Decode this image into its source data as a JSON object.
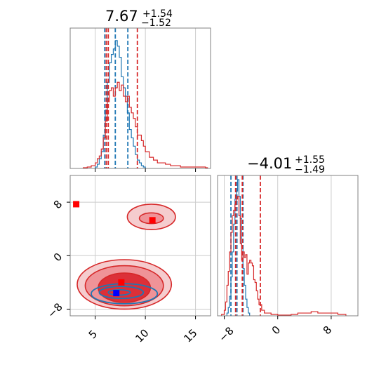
{
  "chart_data": [
    {
      "type": "histogram",
      "panel": "marginal-x",
      "title": {
        "value": "7.67",
        "upper": "+1.54",
        "lower": "−1.52"
      },
      "xlim": [
        2.5,
        16.5
      ],
      "grid": true,
      "colors": {
        "blue": "#1f77b4",
        "red": "#d62728"
      },
      "series": [
        {
          "color": "blue",
          "bins": [
            [
              5.0,
              0.01
            ],
            [
              5.2,
              0.03
            ],
            [
              5.4,
              0.07
            ],
            [
              5.6,
              0.12
            ],
            [
              5.8,
              0.24
            ],
            [
              6.0,
              0.42
            ],
            [
              6.2,
              0.62
            ],
            [
              6.4,
              0.76
            ],
            [
              6.6,
              0.82
            ],
            [
              6.8,
              0.86
            ],
            [
              7.0,
              0.92
            ],
            [
              7.2,
              0.88
            ],
            [
              7.4,
              0.8
            ],
            [
              7.6,
              0.66
            ],
            [
              7.8,
              0.58
            ],
            [
              8.0,
              0.52
            ],
            [
              8.2,
              0.4
            ],
            [
              8.4,
              0.28
            ],
            [
              8.6,
              0.22
            ],
            [
              8.8,
              0.16
            ],
            [
              9.0,
              0.1
            ],
            [
              9.2,
              0.06
            ],
            [
              9.4,
              0.04
            ],
            [
              9.6,
              0.02
            ],
            [
              9.8,
              0.01
            ]
          ],
          "quantiles": [
            5.95,
            7.0,
            8.25
          ]
        },
        {
          "color": "red",
          "bins": [
            [
              3.8,
              0.005
            ],
            [
              4.2,
              0.01
            ],
            [
              4.6,
              0.02
            ],
            [
              5.0,
              0.04
            ],
            [
              5.2,
              0.07
            ],
            [
              5.4,
              0.09
            ],
            [
              5.6,
              0.14
            ],
            [
              5.8,
              0.22
            ],
            [
              6.0,
              0.34
            ],
            [
              6.2,
              0.48
            ],
            [
              6.4,
              0.56
            ],
            [
              6.6,
              0.58
            ],
            [
              6.8,
              0.52
            ],
            [
              7.0,
              0.58
            ],
            [
              7.2,
              0.62
            ],
            [
              7.4,
              0.56
            ],
            [
              7.6,
              0.6
            ],
            [
              7.8,
              0.52
            ],
            [
              8.0,
              0.48
            ],
            [
              8.2,
              0.52
            ],
            [
              8.4,
              0.44
            ],
            [
              8.6,
              0.4
            ],
            [
              8.8,
              0.36
            ],
            [
              9.0,
              0.3
            ],
            [
              9.2,
              0.24
            ],
            [
              9.4,
              0.24
            ],
            [
              9.6,
              0.2
            ],
            [
              9.8,
              0.16
            ],
            [
              10.0,
              0.12
            ],
            [
              10.4,
              0.08
            ],
            [
              10.8,
              0.06
            ],
            [
              11.2,
              0.04
            ],
            [
              11.6,
              0.04
            ],
            [
              12.0,
              0.03
            ],
            [
              12.5,
              0.02
            ],
            [
              13.0,
              0.02
            ],
            [
              13.5,
              0.01
            ],
            [
              14.0,
              0.01
            ],
            [
              15.0,
              0.01
            ],
            [
              16.0,
              0.005
            ]
          ],
          "quantiles": [
            6.1,
            6.3,
            9.2
          ]
        }
      ],
      "xticks": [
        5,
        10,
        15
      ]
    },
    {
      "type": "contour",
      "panel": "joint",
      "xlim": [
        2.5,
        16.5
      ],
      "ylim": [
        -9,
        12
      ],
      "xticks": [
        5,
        10,
        15
      ],
      "yticks": [
        -8,
        0,
        8
      ],
      "tick_labels_x": [
        "5",
        "10",
        "15"
      ],
      "tick_labels_y": [
        "−8",
        "0",
        "8"
      ],
      "grid": true,
      "contours": [
        {
          "color": "red",
          "level": 1,
          "cx": 7.9,
          "cy": -4.3,
          "rx": 4.7,
          "ry": 3.7
        },
        {
          "color": "red",
          "level": 2,
          "cx": 7.9,
          "cy": -4.5,
          "rx": 3.9,
          "ry": 3.0
        },
        {
          "color": "red",
          "level": 3,
          "cx": 7.9,
          "cy": -4.8,
          "rx": 2.6,
          "ry": 2.2
        },
        {
          "color": "red",
          "level": 1,
          "cx": 10.6,
          "cy": 5.8,
          "rx": 2.4,
          "ry": 1.9
        },
        {
          "color": "red",
          "level": 2,
          "cx": 10.6,
          "cy": 5.6,
          "rx": 1.2,
          "ry": 0.8
        },
        {
          "color": "blue",
          "level": 1,
          "cx": 7.9,
          "cy": -5.7,
          "rx": 3.3,
          "ry": 1.5
        },
        {
          "color": "blue",
          "level": 2,
          "cx": 7.6,
          "cy": -5.5,
          "rx": 2.2,
          "ry": 0.9
        },
        {
          "color": "blue",
          "level": 3,
          "cx": 7.4,
          "cy": -5.5,
          "rx": 1.1,
          "ry": 0.4
        }
      ],
      "markers": [
        {
          "color": "red",
          "x": 3.1,
          "y": 7.7
        },
        {
          "color": "red",
          "x": 10.7,
          "y": 5.3
        },
        {
          "color": "red",
          "x": 7.6,
          "y": -4.0
        },
        {
          "color": "blue",
          "x": 7.1,
          "y": -5.6
        }
      ]
    },
    {
      "type": "histogram",
      "panel": "marginal-y",
      "title": {
        "value": "−4.01",
        "upper": "+1.55",
        "lower": "−1.49"
      },
      "xlim": [
        -9,
        12
      ],
      "xticks": [
        -8,
        0,
        8
      ],
      "tick_labels": [
        "−8",
        "0",
        "8"
      ],
      "grid": true,
      "series": [
        {
          "color": "blue",
          "bins": [
            [
              -7.6,
              0.02
            ],
            [
              -7.4,
              0.06
            ],
            [
              -7.2,
              0.14
            ],
            [
              -7.0,
              0.28
            ],
            [
              -6.8,
              0.46
            ],
            [
              -6.6,
              0.66
            ],
            [
              -6.4,
              0.84
            ],
            [
              -6.2,
              0.9
            ],
            [
              -6.0,
              0.98
            ],
            [
              -5.8,
              0.86
            ],
            [
              -5.6,
              0.7
            ],
            [
              -5.4,
              0.5
            ],
            [
              -5.2,
              0.34
            ],
            [
              -5.0,
              0.22
            ],
            [
              -4.8,
              0.12
            ],
            [
              -4.6,
              0.06
            ],
            [
              -4.4,
              0.02
            ]
          ],
          "quantiles": [
            -7.0,
            -6.1,
            -5.2
          ]
        },
        {
          "color": "red",
          "bins": [
            [
              -8.4,
              0.01
            ],
            [
              -8.0,
              0.04
            ],
            [
              -7.8,
              0.1
            ],
            [
              -7.6,
              0.22
            ],
            [
              -7.4,
              0.32
            ],
            [
              -7.2,
              0.46
            ],
            [
              -7.0,
              0.6
            ],
            [
              -6.8,
              0.72
            ],
            [
              -6.6,
              0.76
            ],
            [
              -6.4,
              0.8
            ],
            [
              -6.2,
              0.84
            ],
            [
              -6.0,
              0.86
            ],
            [
              -5.8,
              0.72
            ],
            [
              -5.6,
              0.52
            ],
            [
              -5.4,
              0.4
            ],
            [
              -5.2,
              0.46
            ],
            [
              -5.0,
              0.42
            ],
            [
              -4.8,
              0.44
            ],
            [
              -4.6,
              0.3
            ],
            [
              -4.4,
              0.38
            ],
            [
              -4.2,
              0.4
            ],
            [
              -4.0,
              0.38
            ],
            [
              -3.8,
              0.36
            ],
            [
              -3.6,
              0.26
            ],
            [
              -3.4,
              0.24
            ],
            [
              -3.2,
              0.18
            ],
            [
              -3.0,
              0.12
            ],
            [
              -2.8,
              0.08
            ],
            [
              -2.4,
              0.04
            ],
            [
              -2.0,
              0.02
            ],
            [
              -1.0,
              0.01
            ],
            [
              0.0,
              0.005
            ],
            [
              2.0,
              0.01
            ],
            [
              3.0,
              0.02
            ],
            [
              4.0,
              0.02
            ],
            [
              5.0,
              0.03
            ],
            [
              6.0,
              0.02
            ],
            [
              7.0,
              0.02
            ],
            [
              8.0,
              0.02
            ],
            [
              9.0,
              0.01
            ],
            [
              10.0,
              0.01
            ]
          ],
          "quantiles": [
            -6.3,
            -5.3,
            -2.6
          ]
        }
      ]
    }
  ]
}
